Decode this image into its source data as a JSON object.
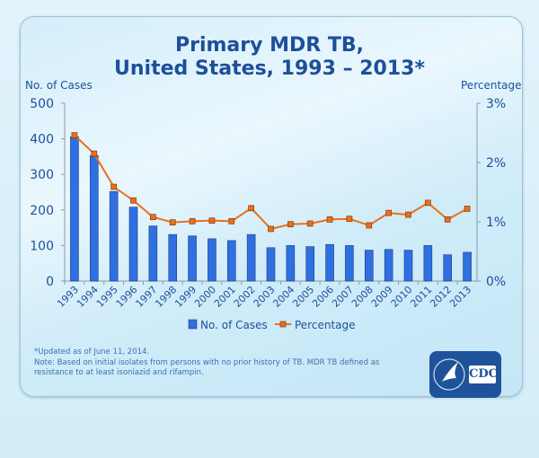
{
  "chart_data": {
    "type": "bar+line",
    "title": "Primary MDR TB,\nUnited States, 1993 – 2013*",
    "title_lines": [
      "Primary MDR TB,",
      "United States, 1993 – 2013*"
    ],
    "ylabel_left": "No. of Cases",
    "ylabel_right": "Percentage",
    "ylim_left": [
      0,
      500
    ],
    "yticks_left": [
      "0",
      "100",
      "200",
      "300",
      "400",
      "500"
    ],
    "ylim_right": [
      0,
      3
    ],
    "yticks_right": [
      "0%",
      "1%",
      "2%",
      "3%"
    ],
    "grid": false,
    "legend_position": "bottom",
    "categories": [
      "1993",
      "1994",
      "1995",
      "1996",
      "1997",
      "1998",
      "1999",
      "2000",
      "2001",
      "2002",
      "2003",
      "2004",
      "2005",
      "2006",
      "2007",
      "2008",
      "2009",
      "2010",
      "2011",
      "2012",
      "2013"
    ],
    "series": [
      {
        "name": "No. of Cases",
        "type": "bar",
        "axis": "left",
        "color": "#2f6fe0",
        "values": [
          406,
          353,
          252,
          208,
          155,
          131,
          127,
          119,
          114,
          131,
          94,
          100,
          97,
          103,
          100,
          87,
          89,
          87,
          100,
          74,
          81
        ]
      },
      {
        "name": "Percentage",
        "type": "line",
        "axis": "right",
        "color": "#e8701c",
        "values": [
          2.46,
          2.15,
          1.59,
          1.36,
          1.08,
          0.99,
          1.01,
          1.02,
          1.01,
          1.23,
          0.88,
          0.96,
          0.97,
          1.04,
          1.05,
          0.94,
          1.15,
          1.12,
          1.32,
          1.04,
          1.22
        ]
      }
    ]
  },
  "footnotes": {
    "updated": "*Updated as of June 11, 2014.",
    "note": "Note: Based on initial isolates from persons with no prior history of TB. MDR TB defined as resistance to at least isoniazid and rifampin."
  },
  "logo": {
    "text": "CDC"
  }
}
